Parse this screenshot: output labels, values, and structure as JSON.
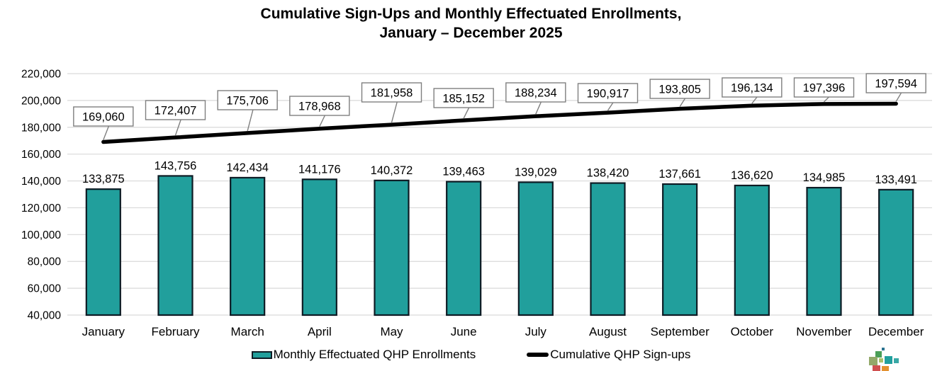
{
  "title": {
    "line1": "Cumulative Sign-Ups and Monthly Effectuated Enrollments,",
    "line2": "January – December 2025"
  },
  "legend": {
    "bars_label": "Monthly Effectuated QHP Enrollments",
    "line_label": "Cumulative QHP Sign-ups"
  },
  "colors": {
    "bar_fill": "#219F9C",
    "bar_border": "#0D1B24",
    "line": "#000000",
    "grid": "#D9D9D9",
    "label_box_border": "#7F7F7F",
    "label_box_fill": "#FFFFFF",
    "text": "#000000"
  },
  "chart_data": {
    "type": "bar",
    "title": "Cumulative Sign-Ups and Monthly Effectuated Enrollments, January – December 2025",
    "categories": [
      "January",
      "February",
      "March",
      "April",
      "May",
      "June",
      "July",
      "August",
      "September",
      "October",
      "November",
      "December"
    ],
    "series": [
      {
        "name": "Monthly Effectuated QHP Enrollments",
        "type": "bar",
        "values": [
          133875,
          143756,
          142434,
          141176,
          140372,
          139463,
          139029,
          138420,
          137661,
          136620,
          134985,
          133491
        ]
      },
      {
        "name": "Cumulative QHP Sign-ups",
        "type": "line",
        "values": [
          169060,
          172407,
          175706,
          178968,
          181958,
          185152,
          188234,
          190917,
          193805,
          196134,
          197396,
          197594
        ]
      }
    ],
    "xlabel": "",
    "ylabel": "",
    "ylim": [
      40000,
      220000
    ],
    "ytick_step": 20000,
    "ytick_labels": [
      "40,000",
      "60,000",
      "80,000",
      "100,000",
      "120,000",
      "140,000",
      "160,000",
      "180,000",
      "200,000",
      "220,000"
    ],
    "grid": true,
    "legend_position": "bottom",
    "value_labels": "all"
  },
  "logo": {
    "name": "pixel-squares-logo",
    "colors": [
      "#2B7391",
      "#4A9E57",
      "#93A96A",
      "#A9C16B",
      "#21A09E",
      "#3AA8A6",
      "#D05050",
      "#E3912F"
    ]
  }
}
